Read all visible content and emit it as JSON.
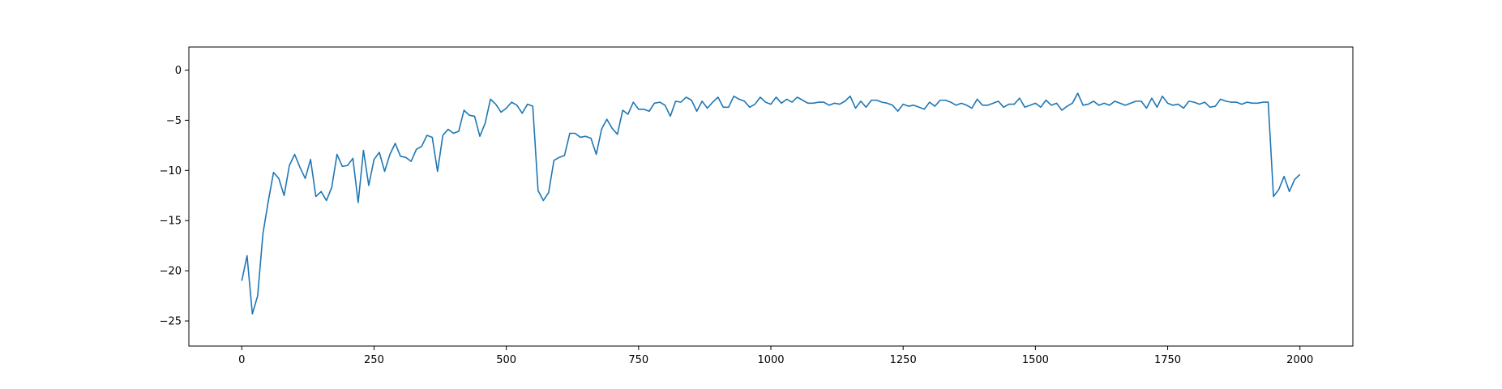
{
  "chart_data": {
    "type": "line",
    "title": "",
    "xlabel": "",
    "ylabel": "",
    "xlim": [
      -100,
      2100
    ],
    "ylim": [
      -27.5,
      2.3
    ],
    "x_ticks": [
      0,
      250,
      500,
      750,
      1000,
      1250,
      1500,
      1750,
      2000
    ],
    "x_tick_labels": [
      "0",
      "250",
      "500",
      "750",
      "1000",
      "1250",
      "1500",
      "1750",
      "2000"
    ],
    "y_ticks": [
      0,
      -5,
      -10,
      -15,
      -20,
      -25
    ],
    "y_tick_labels": [
      "0",
      "−5",
      "−10",
      "−15",
      "−20",
      "−25"
    ],
    "grid": false,
    "series": [
      {
        "color": "#1f77b4",
        "x_start": 0,
        "x_end": 2000,
        "step": 10,
        "values": [
          -21.0,
          -18.5,
          -24.3,
          -22.5,
          -16.3,
          -13.1,
          -10.2,
          -10.8,
          -12.5,
          -9.5,
          -8.4,
          -9.7,
          -10.8,
          -8.9,
          -12.6,
          -12.1,
          -13.0,
          -11.7,
          -8.4,
          -9.6,
          -9.5,
          -8.8,
          -13.2,
          -8.0,
          -11.5,
          -8.9,
          -8.2,
          -10.1,
          -8.4,
          -7.3,
          -8.6,
          -8.7,
          -9.1,
          -7.9,
          -7.6,
          -6.5,
          -6.7,
          -10.1,
          -6.5,
          -5.9,
          -6.3,
          -6.1,
          -4.0,
          -4.5,
          -4.6,
          -6.6,
          -5.3,
          -2.9,
          -3.4,
          -4.2,
          -3.8,
          -3.2,
          -3.5,
          -4.3,
          -3.4,
          -3.6,
          -12.0,
          -13.0,
          -12.2,
          -9.0,
          -8.7,
          -8.5,
          -6.3,
          -6.3,
          -6.7,
          -6.6,
          -6.8,
          -8.4,
          -5.9,
          -4.9,
          -5.8,
          -6.4,
          -4.0,
          -4.4,
          -3.2,
          -3.9,
          -3.9,
          -4.1,
          -3.3,
          -3.2,
          -3.5,
          -4.6,
          -3.1,
          -3.2,
          -2.7,
          -3.0,
          -4.1,
          -3.1,
          -3.8,
          -3.2,
          -2.7,
          -3.7,
          -3.7,
          -2.6,
          -2.9,
          -3.1,
          -3.7,
          -3.4,
          -2.7,
          -3.2,
          -3.4,
          -2.7,
          -3.3,
          -2.9,
          -3.2,
          -2.7,
          -3.0,
          -3.3,
          -3.3,
          -3.2,
          -3.2,
          -3.5,
          -3.3,
          -3.4,
          -3.1,
          -2.6,
          -3.8,
          -3.1,
          -3.7,
          -3.0,
          -3.0,
          -3.2,
          -3.3,
          -3.5,
          -4.1,
          -3.4,
          -3.6,
          -3.5,
          -3.7,
          -3.9,
          -3.2,
          -3.6,
          -3.0,
          -3.0,
          -3.2,
          -3.5,
          -3.3,
          -3.5,
          -3.8,
          -2.9,
          -3.5,
          -3.5,
          -3.3,
          -3.1,
          -3.7,
          -3.4,
          -3.4,
          -2.8,
          -3.7,
          -3.5,
          -3.3,
          -3.7,
          -3.0,
          -3.5,
          -3.3,
          -4.0,
          -3.6,
          -3.3,
          -2.3,
          -3.5,
          -3.4,
          -3.1,
          -3.5,
          -3.3,
          -3.5,
          -3.1,
          -3.3,
          -3.5,
          -3.3,
          -3.1,
          -3.1,
          -3.8,
          -2.8,
          -3.7,
          -2.6,
          -3.3,
          -3.5,
          -3.4,
          -3.8,
          -3.1,
          -3.2,
          -3.4,
          -3.2,
          -3.7,
          -3.6,
          -2.9,
          -3.1,
          -3.2,
          -3.2,
          -3.4,
          -3.2,
          -3.3,
          -3.3,
          -3.2,
          -3.2,
          -12.6,
          -11.9,
          -10.6,
          -12.1,
          -10.9,
          -10.4
        ]
      }
    ]
  }
}
